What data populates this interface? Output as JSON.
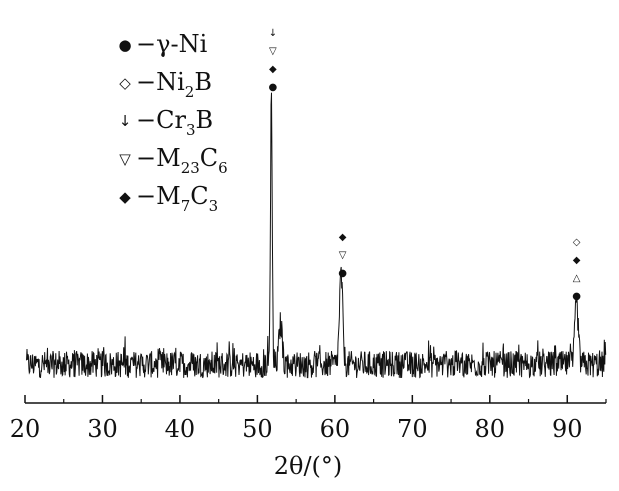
{
  "chart_data": {
    "type": "line",
    "title": "",
    "xlabel": "2θ/(°)",
    "ylabel": "",
    "xlim": [
      20,
      95
    ],
    "xticks": [
      20,
      30,
      40,
      50,
      60,
      70,
      80,
      90
    ],
    "y_axis_shown": false,
    "grid": false,
    "legend_position": "top-left",
    "legend": [
      {
        "symbol": "●",
        "symbol_name": "filled-circle",
        "label": "−γ-Ni"
      },
      {
        "symbol": "◇",
        "symbol_name": "open-diamond",
        "label": "−Ni2B",
        "label_main": "−Ni",
        "label_sub": "2",
        "label_tail": "B"
      },
      {
        "symbol": "↓",
        "symbol_name": "down-arrow",
        "label": "−Cr3B",
        "label_main": "−Cr",
        "label_sub": "3",
        "label_tail": "B"
      },
      {
        "symbol": "▽",
        "symbol_name": "open-triangle-down",
        "label": "−M23C6",
        "label_main": "−M",
        "label_sub": "23",
        "label_tail": "C",
        "label_sub2": "6"
      },
      {
        "symbol": "◆",
        "symbol_name": "filled-diamond",
        "label": "−M7C3",
        "label_main": "−M",
        "label_sub": "7",
        "label_tail": "C",
        "label_sub2": "3"
      }
    ],
    "series": [
      {
        "baseline": 0.05,
        "noise_amplitude": 0.05,
        "peaks": [
          {
            "two_theta": 51.8,
            "intensity": 1.0
          },
          {
            "two_theta": 53.0,
            "intensity": 0.15
          },
          {
            "two_theta": 60.8,
            "intensity": 0.33
          },
          {
            "two_theta": 91.2,
            "intensity": 0.23
          }
        ]
      }
    ],
    "peak_markers": [
      {
        "two_theta": 52.0,
        "symbols": [
          "↓",
          "▽",
          "◆",
          "●"
        ]
      },
      {
        "two_theta": 61.0,
        "symbols": [
          "◆",
          "▽",
          "●"
        ]
      },
      {
        "two_theta": 91.2,
        "symbols": [
          "◇",
          "◆",
          "△",
          "●"
        ]
      }
    ]
  }
}
